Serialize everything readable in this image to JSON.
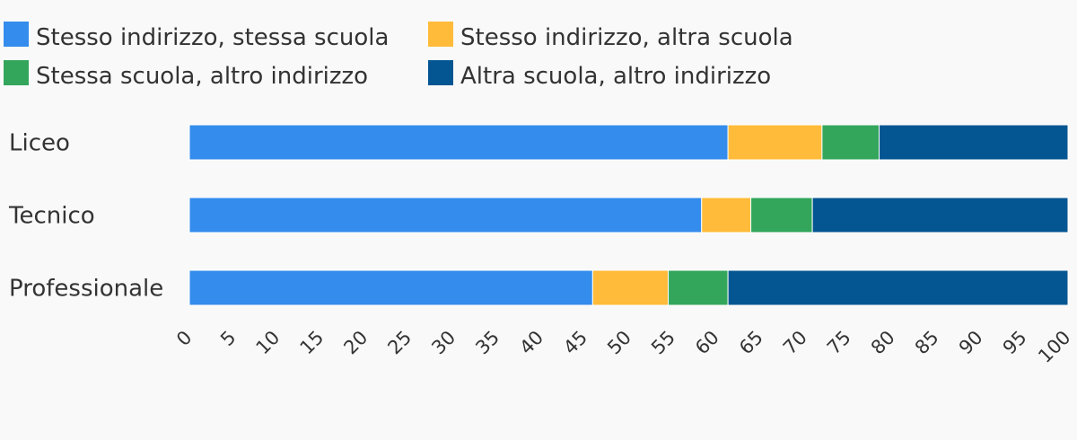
{
  "chart_data": {
    "type": "bar",
    "orientation": "horizontal",
    "stacked": true,
    "categories": [
      "Liceo",
      "Tecnico",
      "Professionale"
    ],
    "series": [
      {
        "name": "Stesso indirizzo, stessa scuola",
        "color": "#348ced",
        "values": [
          61.3,
          58.3,
          45.9
        ]
      },
      {
        "name": "Stesso indirizzo, altra scuola",
        "color": "#ffbb39",
        "values": [
          10.7,
          5.6,
          8.6
        ]
      },
      {
        "name": "Stessa scuola, altro indirizzo",
        "color": "#33a65b",
        "values": [
          6.5,
          7.0,
          6.8
        ]
      },
      {
        "name": "Altra scuola, altro indirizzo",
        "color": "#045692",
        "values": [
          21.5,
          29.1,
          38.7
        ]
      }
    ],
    "x_ticks": [
      "0",
      "5",
      "10",
      "15",
      "20",
      "25",
      "30",
      "35",
      "40",
      "45",
      "50",
      "55",
      "60",
      "65",
      "70",
      "75",
      "80",
      "85",
      "90",
      "95",
      "100"
    ],
    "xlim": [
      0,
      100
    ],
    "grid": false,
    "legend_position": "top-left",
    "title": "",
    "xlabel": "",
    "ylabel": ""
  }
}
